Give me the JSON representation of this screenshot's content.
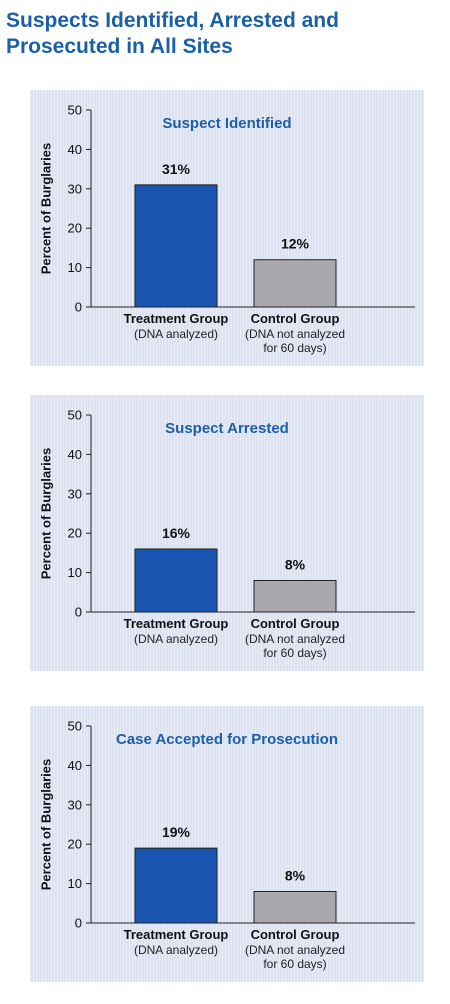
{
  "page": {
    "title": "Suspects Identified, Arrested and Prosecuted in All Sites"
  },
  "colors": {
    "title": "#1b5fa8",
    "treatment_bar": "#1955b0",
    "control_bar": "#a9a9ad",
    "panel_bg": "#dde2f1"
  },
  "chart_data": [
    {
      "type": "bar",
      "title": "Suspect Identified",
      "ylabel": "Percent of Burglaries",
      "ylim": [
        0,
        50
      ],
      "yticks": [
        "0",
        "10",
        "20",
        "30",
        "40",
        "50"
      ],
      "categories": [
        {
          "name": "Treatment Group",
          "sub": [
            "(DNA analyzed)"
          ]
        },
        {
          "name": "Control Group",
          "sub": [
            "(DNA not analyzed",
            "for 60 days)"
          ]
        }
      ],
      "values": [
        31,
        12
      ],
      "value_labels": [
        "31%",
        "12%"
      ]
    },
    {
      "type": "bar",
      "title": "Suspect Arrested",
      "ylabel": "Percent of Burglaries",
      "ylim": [
        0,
        50
      ],
      "yticks": [
        "0",
        "10",
        "20",
        "30",
        "40",
        "50"
      ],
      "categories": [
        {
          "name": "Treatment Group",
          "sub": [
            "(DNA analyzed)"
          ]
        },
        {
          "name": "Control Group",
          "sub": [
            "(DNA not analyzed",
            "for 60 days)"
          ]
        }
      ],
      "values": [
        16,
        8
      ],
      "value_labels": [
        "16%",
        "8%"
      ]
    },
    {
      "type": "bar",
      "title": "Case Accepted for Prosecution",
      "ylabel": "Percent of Burglaries",
      "ylim": [
        0,
        50
      ],
      "yticks": [
        "0",
        "10",
        "20",
        "30",
        "40",
        "50"
      ],
      "categories": [
        {
          "name": "Treatment Group",
          "sub": [
            "(DNA analyzed)"
          ]
        },
        {
          "name": "Control Group",
          "sub": [
            "(DNA not analyzed",
            "for 60 days)"
          ]
        }
      ],
      "values": [
        19,
        8
      ],
      "value_labels": [
        "19%",
        "8%"
      ]
    }
  ]
}
